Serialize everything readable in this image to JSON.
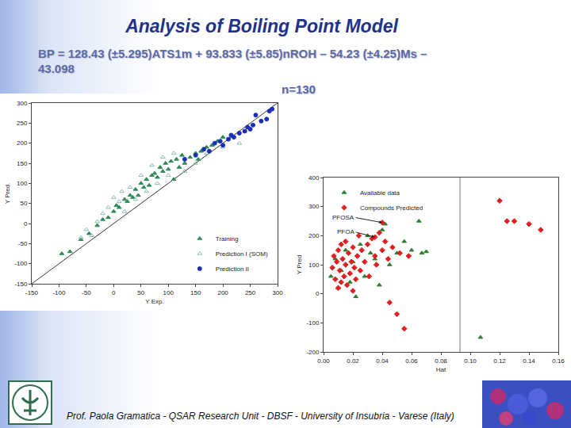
{
  "slide": {
    "title": "Analysis of Boiling Point Model",
    "equation": [
      "BP = 128.43 (±5.295)ATS1m + 93.833 (±5.85)nROH – 54.23 (±4.25)Ms –",
      "43.098"
    ],
    "n": "n=130",
    "footer": "Prof. Paola Gramatica - QSAR Research Unit - DBSF - University of Insubria - Varese (Italy)"
  },
  "chart_data": [
    {
      "type": "scatter",
      "x_label": "Y Exp.",
      "y_label": "Y Pred.",
      "xlim": [
        -150,
        300
      ],
      "ylim": [
        -150,
        300
      ],
      "xticks": [
        -150,
        -100,
        -50,
        0,
        50,
        100,
        150,
        200,
        250,
        300
      ],
      "yticks": [
        -150,
        -100,
        -50,
        0,
        50,
        100,
        150,
        200,
        250,
        300
      ],
      "grid": false,
      "legend": "lower right",
      "diagonal": true,
      "series": [
        {
          "name": "Training",
          "color": "#2e8b57",
          "marker": "triangle-up",
          "x": [
            -95,
            -80,
            -60,
            -45,
            -30,
            -20,
            -10,
            0,
            5,
            10,
            20,
            25,
            30,
            35,
            40,
            45,
            50,
            55,
            60,
            65,
            70,
            75,
            80,
            85,
            90,
            95,
            100,
            105,
            110,
            115,
            120,
            125,
            130,
            140,
            150,
            155,
            160,
            170,
            180,
            190,
            200
          ],
          "values": [
            -75,
            -70,
            -40,
            -25,
            -5,
            10,
            15,
            30,
            45,
            40,
            60,
            55,
            70,
            65,
            85,
            70,
            100,
            90,
            110,
            95,
            120,
            125,
            115,
            140,
            130,
            150,
            135,
            155,
            110,
            160,
            140,
            170,
            150,
            165,
            175,
            160,
            180,
            190,
            195,
            205,
            215
          ]
        },
        {
          "name": "Prediction I (SOM)",
          "color": "#8fbcb0",
          "marker": "triangle-up-open",
          "x": [
            -60,
            -50,
            -40,
            -30,
            -20,
            -10,
            0,
            10,
            15,
            20,
            30,
            40,
            50,
            60,
            70,
            80,
            90,
            100,
            110,
            130,
            150,
            170,
            200,
            230
          ],
          "values": [
            -35,
            -15,
            -30,
            5,
            25,
            40,
            65,
            55,
            80,
            30,
            90,
            60,
            120,
            80,
            145,
            100,
            165,
            120,
            175,
            130,
            150,
            175,
            190,
            200
          ]
        },
        {
          "name": "Prediction II",
          "color": "#1a2fb8",
          "marker": "circle",
          "x": [
            130,
            150,
            165,
            175,
            185,
            195,
            200,
            210,
            215,
            220,
            230,
            240,
            245,
            250,
            255,
            260,
            270,
            280,
            285,
            290
          ],
          "values": [
            160,
            170,
            185,
            180,
            200,
            205,
            195,
            210,
            220,
            215,
            225,
            230,
            240,
            235,
            245,
            270,
            255,
            260,
            280,
            285
          ]
        }
      ]
    },
    {
      "type": "scatter",
      "x_label": "Hat",
      "y_label": "Y Pred",
      "xlim": [
        0,
        0.16
      ],
      "ylim": [
        -200,
        400
      ],
      "xticks": [
        {
          "value": 0,
          "label": "0.00"
        },
        {
          "value": 0.02,
          "label": "0.02"
        },
        {
          "value": 0.04,
          "label": "0.04"
        },
        {
          "value": 0.06,
          "label": "0.06"
        },
        {
          "value": 0.08,
          "label": "0.08"
        },
        {
          "value": 0.1,
          "label": "0.10"
        },
        {
          "value": 0.12,
          "label": "0.12"
        },
        {
          "value": 0.14,
          "label": "0.14"
        },
        {
          "value": 0.16,
          "label": "0.16"
        }
      ],
      "yticks": [
        -200,
        -100,
        0,
        100,
        200,
        300,
        400
      ],
      "grid": false,
      "legend": "upper left",
      "hat_threshold": 0.093,
      "annotations": [
        {
          "text": "PFOSA",
          "x": 0.022,
          "y": 262,
          "target_x": 0.04,
          "target_y": 245
        },
        {
          "text": "PFOA",
          "x": 0.022,
          "y": 212,
          "target_x": 0.035,
          "target_y": 195
        }
      ],
      "series": [
        {
          "name": "Available data",
          "color": "#2e7d32",
          "marker": "triangle-up",
          "x": [
            0.005,
            0.008,
            0.01,
            0.012,
            0.015,
            0.018,
            0.02,
            0.022,
            0.025,
            0.028,
            0.03,
            0.032,
            0.035,
            0.038,
            0.04,
            0.042,
            0.045,
            0.05,
            0.055,
            0.06,
            0.065,
            0.067,
            0.07,
            0.107
          ],
          "values": [
            60,
            120,
            20,
            80,
            150,
            40,
            110,
            -10,
            170,
            60,
            200,
            140,
            120,
            30,
            220,
            240,
            100,
            140,
            180,
            150,
            250,
            140,
            145,
            -150
          ]
        },
        {
          "name": "Compounds Predicted",
          "color": "#e02020",
          "marker": "diamond",
          "x": [
            0.006,
            0.007,
            0.008,
            0.009,
            0.01,
            0.01,
            0.011,
            0.012,
            0.012,
            0.013,
            0.014,
            0.015,
            0.015,
            0.016,
            0.017,
            0.018,
            0.019,
            0.02,
            0.02,
            0.021,
            0.022,
            0.023,
            0.024,
            0.025,
            0.026,
            0.028,
            0.03,
            0.031,
            0.033,
            0.035,
            0.036,
            0.038,
            0.04,
            0.042,
            0.044,
            0.045,
            0.047,
            0.05,
            0.052,
            0.055,
            0.058,
            0.035,
            0.04,
            0.12,
            0.125,
            0.13,
            0.14,
            0.148
          ],
          "values": [
            90,
            130,
            50,
            110,
            20,
            150,
            80,
            170,
            40,
            120,
            60,
            100,
            180,
            30,
            140,
            70,
            110,
            160,
            10,
            90,
            50,
            130,
            200,
            80,
            150,
            110,
            170,
            60,
            190,
            130,
            100,
            210,
            150,
            180,
            120,
            -30,
            160,
            -70,
            140,
            -120,
            130,
            195,
            245,
            320,
            250,
            250,
            240,
            220
          ]
        }
      ]
    }
  ]
}
